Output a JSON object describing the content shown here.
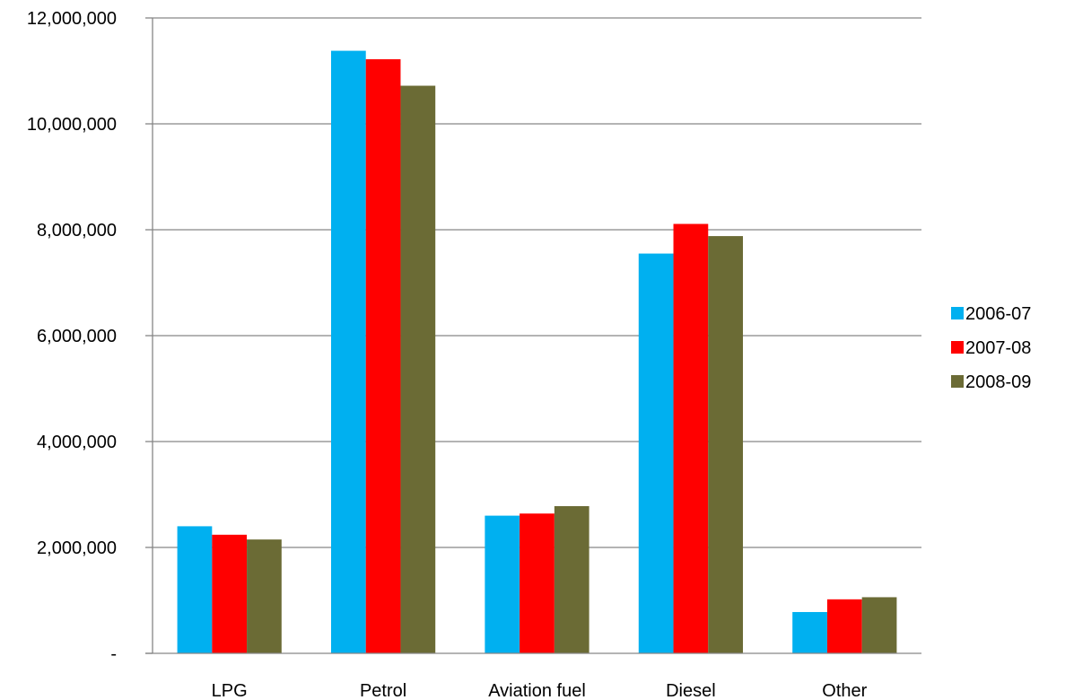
{
  "chart_data": {
    "type": "bar",
    "title": "",
    "xlabel": "",
    "ylabel": "",
    "categories": [
      "LPG",
      "Petrol",
      "Aviation fuel",
      "Diesel",
      "Other"
    ],
    "series": [
      {
        "name": "2006-07",
        "color": "#00B0F0",
        "values": [
          2400000,
          11380000,
          2600000,
          7550000,
          780000
        ]
      },
      {
        "name": "2007-08",
        "color": "#FF0000",
        "values": [
          2240000,
          11220000,
          2640000,
          8110000,
          1020000
        ]
      },
      {
        "name": "2008-09",
        "color": "#6B6B35",
        "values": [
          2150000,
          10720000,
          2780000,
          7880000,
          1060000
        ]
      }
    ],
    "ylim": [
      0,
      12000000
    ],
    "yticks": [
      0,
      2000000,
      4000000,
      6000000,
      8000000,
      10000000,
      12000000
    ],
    "ytick_labels": [
      "-",
      "2,000,000",
      "4,000,000",
      "6,000,000",
      "8,000,000",
      "10,000,000",
      "12,000,000"
    ],
    "grid": true,
    "legend_position": "right",
    "colors": {
      "gridline": "#868686",
      "axis": "#868686",
      "text": "#000000"
    }
  }
}
